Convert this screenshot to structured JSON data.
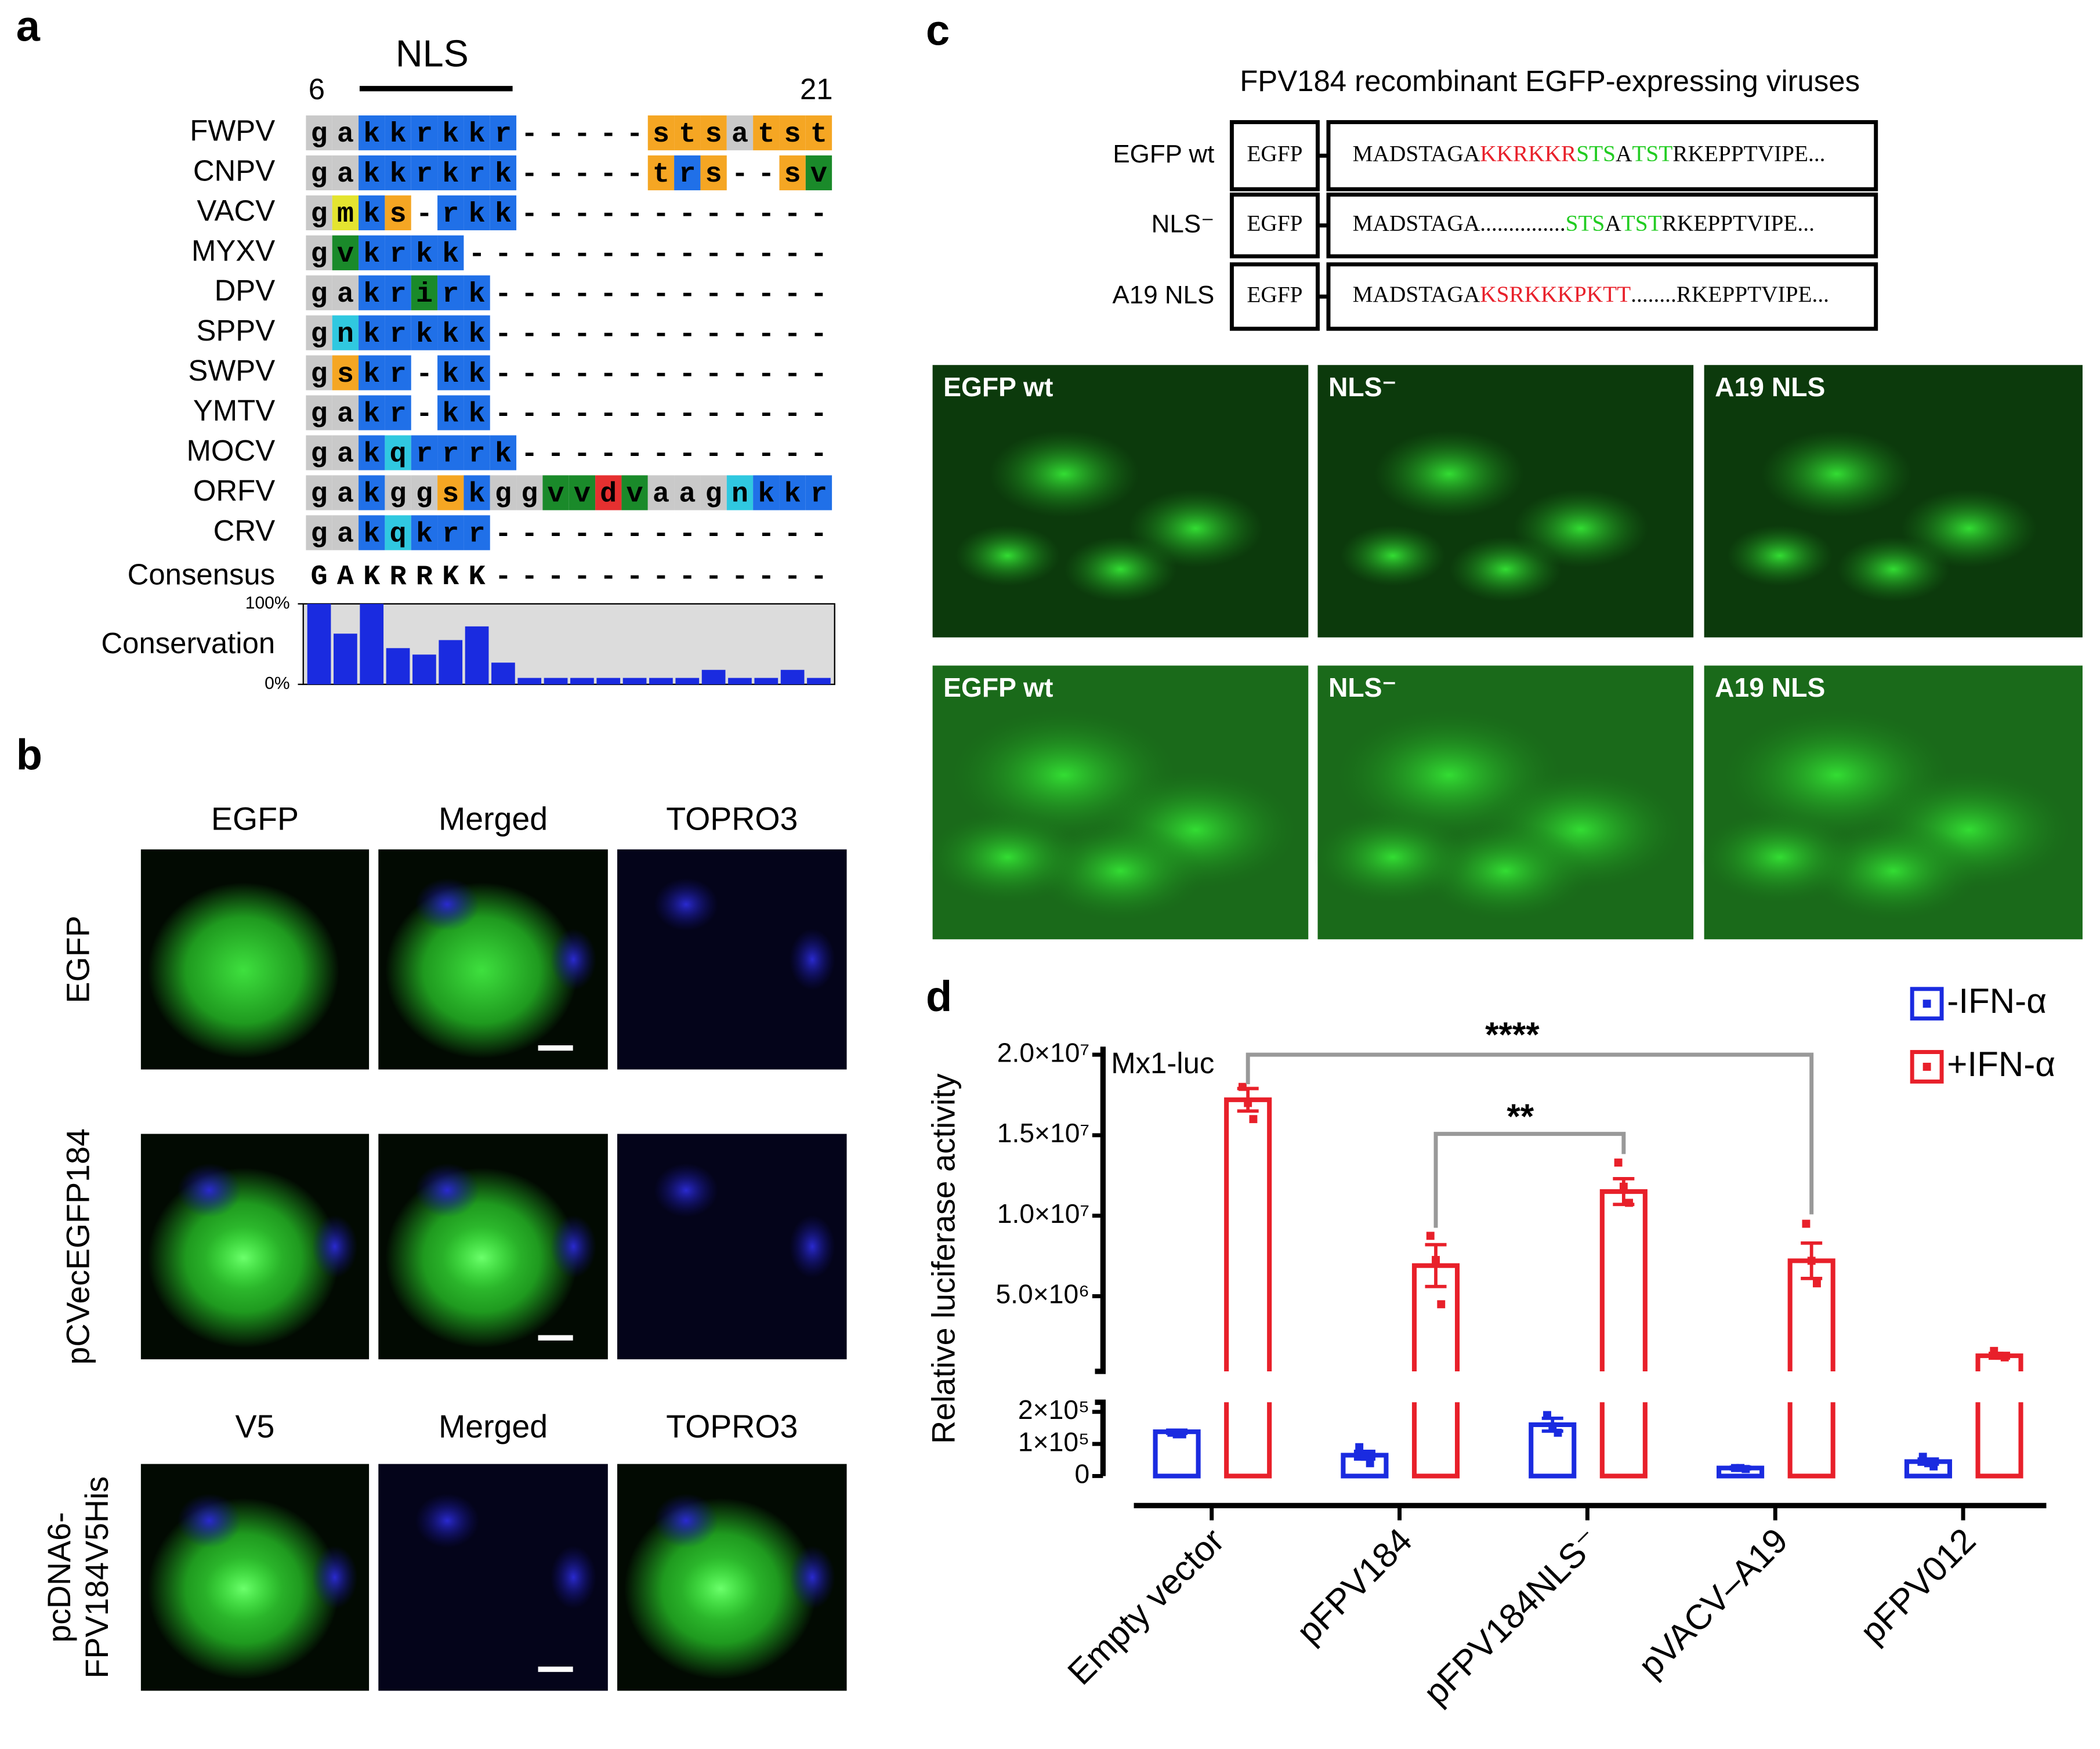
{
  "panel_labels": [
    "a",
    "b",
    "c",
    "d"
  ],
  "alignment": {
    "region_label": "NLS",
    "start": 6,
    "end": 21,
    "rows": [
      {
        "name": "FWPV",
        "seq": "gakkrkkr-----stsatst",
        "shade": "GGBBBBBB.....OOOGOOO"
      },
      {
        "name": "CNPV",
        "seq": "gakkrkrk-----trs--sv",
        "shade": "GGBBBBBB.....OBO..ON"
      },
      {
        "name": "VACV",
        "seq": "gmks-rkk------------",
        "shade": "GYBO.BBB............"
      },
      {
        "name": "MYXV",
        "seq": "gvkrkk--------------",
        "shade": "GNBBBB.............."
      },
      {
        "name": "DPV",
        "seq": "gakrirk-------------",
        "shade": "GGBBNBB............."
      },
      {
        "name": "SPPV",
        "seq": "gnkrkkk-------------",
        "shade": "GCBBBBB............."
      },
      {
        "name": "SWPV",
        "seq": "gskr-kk-------------",
        "shade": "GOBB.BB............."
      },
      {
        "name": "YMTV",
        "seq": "gakr-kk-------------",
        "shade": "GGBB.BB............."
      },
      {
        "name": "MOCV",
        "seq": "gakqrrrk------------",
        "shade": "GGBCBBBB............"
      },
      {
        "name": "ORFV",
        "seq": "gakggskggvvdvaagnkkr",
        "shade": "GGBGGOBGGNNRNGGGCBBB"
      },
      {
        "name": "CRV",
        "seq": "gakqkrr-------------",
        "shade": "GGBCBBB............."
      }
    ],
    "consensus": {
      "name": "Consensus",
      "seq": "GAKRRKK-------------"
    },
    "conservation": {
      "label": "Conservation",
      "color": "#1a2be0",
      "values": [
        100,
        63,
        100,
        45,
        37,
        55,
        72,
        27,
        8,
        8,
        8,
        8,
        8,
        8,
        8,
        18,
        8,
        8,
        18,
        8
      ],
      "ylim": [
        0,
        100
      ],
      "yticks": [
        {
          "value": 0,
          "label": "0%"
        },
        {
          "value": 100,
          "label": "100%"
        }
      ]
    }
  },
  "microscopy": {
    "column_headers": [
      [
        "EGFP",
        "Merged",
        "TOPRO3"
      ],
      [
        "V5",
        "Merged",
        "TOPRO3"
      ]
    ],
    "row_labels": [
      [
        "EGFP"
      ],
      [
        "pCVecEGFP184"
      ],
      [
        "pcDNA6-",
        "FPV184V5His"
      ]
    ]
  },
  "constructs": {
    "title": "FPV184 recombinant EGFP-expressing viruses",
    "items": [
      {
        "name": "EGFP wt",
        "tag": "EGFP",
        "segments": [
          {
            "text": "MADSTAGA",
            "color": "#000000"
          },
          {
            "text": "KKRKKR",
            "color": "#e8202a"
          },
          {
            "text": "STS",
            "color": "#22cc22"
          },
          {
            "text": "A",
            "color": "#000000"
          },
          {
            "text": "TST",
            "color": "#22cc22"
          },
          {
            "text": "RKEPPTVIPE...",
            "color": "#000000"
          }
        ]
      },
      {
        "name": "NLS⁻",
        "tag": "EGFP",
        "segments": [
          {
            "text": "MADSTAGA...............",
            "color": "#000000"
          },
          {
            "text": "STS",
            "color": "#22cc22"
          },
          {
            "text": "A",
            "color": "#000000"
          },
          {
            "text": "TST",
            "color": "#22cc22"
          },
          {
            "text": "RKEPPTVIPE...",
            "color": "#000000"
          }
        ]
      },
      {
        "name": "A19 NLS",
        "tag": "EGFP",
        "segments": [
          {
            "text": "MADSTAGA",
            "color": "#000000"
          },
          {
            "text": "KSRKKKPKTT",
            "color": "#e8202a"
          },
          {
            "text": "........RKEPPTVIPE...",
            "color": "#000000"
          }
        ]
      }
    ]
  },
  "fluorescence": {
    "rows": [
      [
        "EGFP wt",
        "NLS⁻",
        "A19 NLS"
      ],
      [
        "EGFP wt",
        "NLS⁻",
        "A19 NLS"
      ]
    ]
  },
  "chart_data": {
    "type": "bar",
    "y_label": "Relative luciferase activity",
    "legend": "top right",
    "categories": [
      "Empty vector",
      "pFPV184",
      "pFPV184NLS⁻",
      "pVACV–A19",
      "pFPV012"
    ],
    "segments": [
      {
        "ylim": [
          0,
          230000
        ],
        "yticks": [
          0,
          {
            "value": 100000,
            "label": "1×10⁵"
          },
          {
            "value": 200000,
            "label": "2×10⁵"
          }
        ]
      },
      {
        "ylim": [
          330000,
          20500000
        ],
        "yticks": [
          {
            "value": 5000000,
            "label": "5.0×10⁶"
          },
          {
            "value": 10000000,
            "label": "1.0×10⁷"
          },
          {
            "value": 15000000,
            "label": "1.5×10⁷"
          },
          {
            "value": 20000000,
            "label": "2.0×10⁷"
          }
        ]
      }
    ],
    "series": [
      {
        "name": "-IFN-α",
        "color": "#1a2be0",
        "values": [
          138000,
          65000,
          160000,
          25000,
          45000
        ],
        "errors": [
          5000,
          12000,
          20000,
          3000,
          8000
        ],
        "points": [
          [
            135000,
            130000,
            130000
          ],
          [
            90000,
            60000,
            40000
          ],
          [
            190000,
            155000,
            135000
          ],
          [
            25000,
            25000,
            22000
          ],
          [
            60000,
            40000,
            30000
          ]
        ]
      },
      {
        "name": "+IFN-α",
        "color": "#e8202a",
        "values": [
          17200000,
          6900000,
          11500000,
          7200000,
          1300000
        ],
        "errors": [
          700000,
          1300000,
          800000,
          1100000,
          150000
        ],
        "points": [
          [
            18000000,
            17000000,
            16000000
          ],
          [
            8750000,
            7250000,
            4500000
          ],
          [
            13300000,
            11800000,
            10800000
          ],
          [
            9500000,
            7200000,
            5800000
          ],
          [
            1600000,
            1300000,
            1200000
          ]
        ]
      }
    ],
    "annotations": [
      {
        "text": "Mx1-luc"
      },
      {
        "text": "****"
      },
      {
        "text": "**"
      }
    ]
  }
}
